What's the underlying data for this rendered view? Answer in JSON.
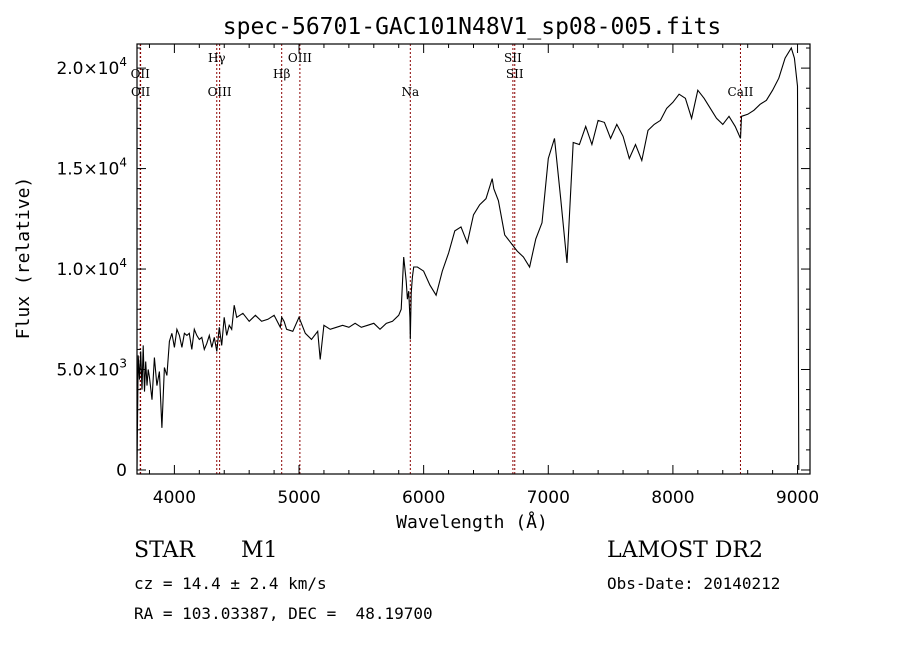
{
  "chart_data": {
    "type": "line",
    "title": "spec-56701-GAC101N48V1_sp08-005.fits",
    "xlabel": "Wavelength (Å)",
    "ylabel": "Flux (relative)",
    "xlim": [
      3700,
      9100
    ],
    "ylim": [
      -200,
      21200
    ],
    "xticks": [
      {
        "value": 4000,
        "label": "4000"
      },
      {
        "value": 5000,
        "label": "5000"
      },
      {
        "value": 6000,
        "label": "6000"
      },
      {
        "value": 7000,
        "label": "7000"
      },
      {
        "value": 8000,
        "label": "8000"
      },
      {
        "value": 9000,
        "label": "9000"
      }
    ],
    "yticks": [
      {
        "value": 0,
        "mantissa": "0",
        "exponent": ""
      },
      {
        "value": 5000,
        "mantissa": "5.0×10",
        "exponent": "3"
      },
      {
        "value": 10000,
        "mantissa": "1.0×10",
        "exponent": "4"
      },
      {
        "value": 15000,
        "mantissa": "1.5×10",
        "exponent": "4"
      },
      {
        "value": 20000,
        "mantissa": "2.0×10",
        "exponent": "4"
      }
    ],
    "grid": false,
    "line_color": "#000000",
    "marker_color": "#8b0000",
    "lines": [
      {
        "name": "OII",
        "wavelength": 3726,
        "row": 0
      },
      {
        "name": "OII",
        "wavelength": 3729,
        "row": 1
      },
      {
        "name": "Hγ",
        "wavelength": 4340,
        "row": 2
      },
      {
        "name": "OIII",
        "wavelength": 4363,
        "row": 1
      },
      {
        "name": "Hβ",
        "wavelength": 4861,
        "row": 3
      },
      {
        "name": "OIII",
        "wavelength": 5007,
        "row": 2
      },
      {
        "name": "Na",
        "wavelength": 5893,
        "row": 1
      },
      {
        "name": "SII",
        "wavelength": 6716,
        "row": 2
      },
      {
        "name": "SII",
        "wavelength": 6731,
        "row": 3
      },
      {
        "name": "CaII",
        "wavelength": 8542,
        "row": 1
      }
    ],
    "series": [
      {
        "x": [
          3700,
          3710,
          3720,
          3730,
          3740,
          3750,
          3760,
          3770,
          3780,
          3790,
          3800,
          3820,
          3840,
          3860,
          3880,
          3900,
          3920,
          3940,
          3960,
          3980,
          4000,
          4020,
          4040,
          4060,
          4080,
          4100,
          4120,
          4140,
          4160,
          4180,
          4200,
          4220,
          4240,
          4260,
          4280,
          4300,
          4320,
          4340,
          4360,
          4380,
          4400,
          4420,
          4440,
          4460,
          4480,
          4500,
          4550,
          4600,
          4650,
          4700,
          4750,
          4800,
          4850,
          4861,
          4880,
          4900,
          4950,
          5000,
          5050,
          5100,
          5150,
          5170,
          5200,
          5250,
          5300,
          5350,
          5400,
          5450,
          5500,
          5550,
          5600,
          5650,
          5700,
          5750,
          5800,
          5820,
          5840,
          5860,
          5870,
          5880,
          5890,
          5893,
          5900,
          5910,
          5920,
          5950,
          6000,
          6050,
          6100,
          6150,
          6200,
          6250,
          6300,
          6350,
          6400,
          6450,
          6500,
          6550,
          6563,
          6600,
          6650,
          6700,
          6750,
          6800,
          6850,
          6900,
          6950,
          7000,
          7050,
          7100,
          7150,
          7200,
          7250,
          7300,
          7350,
          7400,
          7450,
          7500,
          7550,
          7600,
          7650,
          7700,
          7750,
          7800,
          7850,
          7900,
          7950,
          8000,
          8050,
          8100,
          8150,
          8200,
          8250,
          8300,
          8350,
          8400,
          8450,
          8500,
          8542,
          8550,
          8600,
          8650,
          8700,
          8750,
          8800,
          8850,
          8900,
          8950,
          8975,
          9000,
          9010
        ],
        "values": [
          0,
          5700,
          4500,
          5900,
          4000,
          6200,
          3900,
          5400,
          4200,
          5000,
          4600,
          3500,
          5600,
          4200,
          4900,
          2100,
          5100,
          4700,
          6400,
          6800,
          6100,
          7000,
          6700,
          6100,
          6800,
          6700,
          6800,
          6000,
          7000,
          6700,
          6500,
          6600,
          6000,
          6300,
          6700,
          6100,
          6600,
          5900,
          7100,
          6200,
          7600,
          6700,
          7200,
          7000,
          8200,
          7600,
          7800,
          7400,
          7700,
          7400,
          7500,
          7700,
          7100,
          7600,
          7400,
          7000,
          6900,
          7600,
          6800,
          6500,
          6900,
          5500,
          7200,
          7000,
          7100,
          7200,
          7100,
          7300,
          7100,
          7200,
          7300,
          7000,
          7300,
          7400,
          7700,
          8000,
          10600,
          9400,
          8500,
          8900,
          7600,
          6500,
          8800,
          9600,
          10100,
          10100,
          9900,
          9200,
          8700,
          9900,
          10800,
          11900,
          12100,
          11300,
          12700,
          13200,
          13500,
          14500,
          14000,
          13400,
          11700,
          11300,
          10900,
          10600,
          10100,
          11500,
          12300,
          15500,
          16500,
          13500,
          10300,
          16300,
          16200,
          17100,
          16200,
          17400,
          17300,
          16500,
          17200,
          16600,
          15500,
          16200,
          15400,
          16900,
          17200,
          17400,
          18000,
          18300,
          18700,
          18500,
          17500,
          18900,
          18500,
          18000,
          17500,
          17200,
          17600,
          17100,
          16500,
          17600,
          17700,
          17900,
          18200,
          18400,
          18900,
          19500,
          20500,
          21000,
          20500,
          19100,
          0
        ]
      }
    ]
  },
  "footer": {
    "object_class": "STAR",
    "subclass": "M1",
    "survey": "LAMOST DR2",
    "redshift": "cz = 14.4 ± 2.4 km/s",
    "obs_date": "Obs-Date: 20140212",
    "coords": "RA = 103.03387, DEC =  48.19700"
  }
}
